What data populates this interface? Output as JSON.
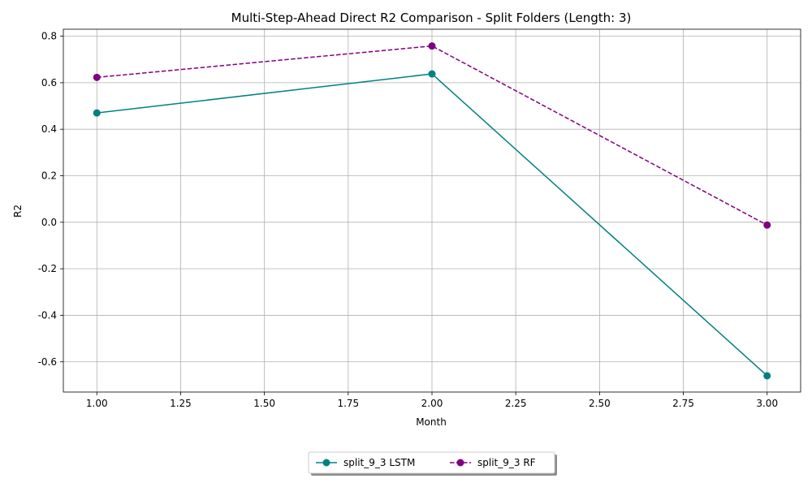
{
  "chart_data": {
    "type": "line",
    "title": "Multi-Step-Ahead Direct R2 Comparison - Split Folders (Length: 3)",
    "xlabel": "Month",
    "ylabel": "R2",
    "xlim": [
      0.9,
      3.1
    ],
    "ylim": [
      -0.73,
      0.83
    ],
    "xticks": [
      "1.00",
      "1.25",
      "1.50",
      "1.75",
      "2.00",
      "2.25",
      "2.50",
      "2.75",
      "3.00"
    ],
    "yticks": [
      "-0.6",
      "-0.4",
      "-0.2",
      "0.0",
      "0.2",
      "0.4",
      "0.6",
      "0.8"
    ],
    "grid": true,
    "legend_placement": "bottom-center",
    "x": [
      1,
      2,
      3
    ],
    "series": [
      {
        "name": "split_9_3 LSTM",
        "values": [
          0.47,
          0.638,
          -0.66
        ],
        "color": "#008080",
        "dash": "solid",
        "marker": "circle"
      },
      {
        "name": "split_9_3 RF",
        "values": [
          0.623,
          0.758,
          -0.012
        ],
        "color": "#800080",
        "dash": "dashed",
        "marker": "circle"
      }
    ]
  }
}
